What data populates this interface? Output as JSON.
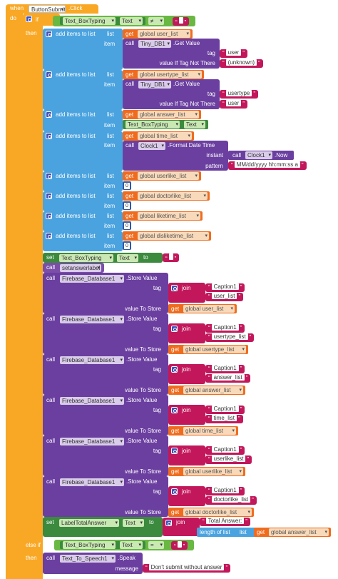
{
  "event": {
    "when": "when",
    "component": "ButtonSubmit",
    "event_name": ".Click",
    "do": "do"
  },
  "if_block": {
    "if_label": "if",
    "then_label": "then",
    "condition": {
      "component": "Text_BoxTyping",
      "property": "Text",
      "operator": "≠",
      "value": " "
    }
  },
  "add_blocks": [
    {
      "label": "add items to list",
      "list_label": "list",
      "item_label": "item",
      "get": "get",
      "var": "global user_list"
    },
    {
      "label": "add items to list",
      "list_label": "list",
      "item_label": "item",
      "get": "get",
      "var": "global usertype_list"
    },
    {
      "label": "add items to list",
      "list_label": "list",
      "item_label": "item",
      "get": "get",
      "var": "global answer_list"
    },
    {
      "label": "add items to list",
      "list_label": "list",
      "item_label": "item",
      "get": "get",
      "var": "global time_list"
    },
    {
      "label": "add items to list",
      "list_label": "list",
      "item_label": "item",
      "get": "get",
      "var": "global userlike_list"
    },
    {
      "label": "add items to list",
      "list_label": "list",
      "item_label": "item",
      "get": "get",
      "var": "global doctorlike_list"
    },
    {
      "label": "add items to list",
      "list_label": "list",
      "item_label": "item",
      "get": "get",
      "var": "global liketime_list"
    },
    {
      "label": "add items to list",
      "list_label": "list",
      "item_label": "item",
      "get": "get",
      "var": "global disliketime_list"
    }
  ],
  "tinydb_calls": [
    {
      "call": "call",
      "component": "Tiny_DB1",
      "method": ".Get Value",
      "tag_label": "tag",
      "tag_value": "user",
      "default_label": "value If Tag Not There",
      "default_value": "(unknown)"
    },
    {
      "call": "call",
      "component": "Tiny_DB1",
      "method": ".Get Value",
      "tag_label": "tag",
      "tag_value": "usertype",
      "default_label": "value If Tag Not There",
      "default_value": "user"
    }
  ],
  "answer_item": {
    "component": "Text_BoxTyping",
    "property": "Text"
  },
  "clock_call": {
    "call": "call",
    "component": "Clock1",
    "method": ".Format Date Time",
    "instant_label": "instant",
    "now_call": "call",
    "now_component": "Clock1",
    "now_method": ".Now",
    "pattern_label": "pattern",
    "pattern_value": "MM/dd/yyyy hh:mm:ss a"
  },
  "zero_items": [
    "0",
    "0",
    "0",
    "0"
  ],
  "set_text": {
    "set": "set",
    "component": "Text_BoxTyping",
    "property": "Text",
    "to": "to",
    "value": " "
  },
  "setanswerlabel": {
    "call": "call",
    "procedure": "setanswerlabel"
  },
  "store_calls": [
    {
      "call": "call",
      "component": "Firebase_Database1",
      "method": ".Store Value",
      "tag_label": "tag",
      "join": "join",
      "part1": "Caption1",
      "part2": "user_list",
      "value_label": "value To Store",
      "get": "get",
      "var": "global user_list"
    },
    {
      "call": "call",
      "component": "Firebase_Database1",
      "method": ".Store Value",
      "tag_label": "tag",
      "join": "join",
      "part1": "Caption1",
      "part2": "usertype_list",
      "value_label": "value To Store",
      "get": "get",
      "var": "global usertype_list"
    },
    {
      "call": "call",
      "component": "Firebase_Database1",
      "method": ".Store Value",
      "tag_label": "tag",
      "join": "join",
      "part1": "Caption1",
      "part2": "answer_list",
      "value_label": "value To Store",
      "get": "get",
      "var": "global answer_list"
    },
    {
      "call": "call",
      "component": "Firebase_Database1",
      "method": ".Store Value",
      "tag_label": "tag",
      "join": "join",
      "part1": "Caption1",
      "part2": "time_list",
      "value_label": "value To Store",
      "get": "get",
      "var": "global time_list"
    },
    {
      "call": "call",
      "component": "Firebase_Database1",
      "method": ".Store Value",
      "tag_label": "tag",
      "join": "join",
      "part1": "Caption1",
      "part2": "userlike_list",
      "value_label": "value To Store",
      "get": "get",
      "var": "global userlike_list"
    },
    {
      "call": "call",
      "component": "Firebase_Database1",
      "method": ".Store Value",
      "tag_label": "tag",
      "join": "join",
      "part1": "Caption1",
      "part2": "doctorlike_list",
      "value_label": "value To Store",
      "get": "get",
      "var": "global doctorlike_list"
    }
  ],
  "set_total": {
    "set": "set",
    "component": "LabelTotalAnswer",
    "property": "Text",
    "to": "to",
    "join": "join",
    "part1": "Total Answer: ",
    "length_label": "length of list",
    "list_label": "list",
    "get": "get",
    "var": "global answer_list"
  },
  "else_if": {
    "else_if_label": "else if",
    "then_label": "then",
    "condition": {
      "component": "Text_BoxTyping",
      "property": "Text",
      "operator": "=",
      "value": " "
    }
  },
  "speak": {
    "call": "call",
    "component": "Text_To_Speech1",
    "method": ".Speak",
    "message_label": "message",
    "message_value": "Don't submit without answer"
  },
  "colors": {
    "control": "#f9a825",
    "lists": "#4aa3df",
    "component_call": "#6b3fa0",
    "variable": "#ef6c1f",
    "text": "#c2185b",
    "component_set": "#3b8a3e",
    "math": "#2e59a8",
    "logic": "#69b843"
  }
}
